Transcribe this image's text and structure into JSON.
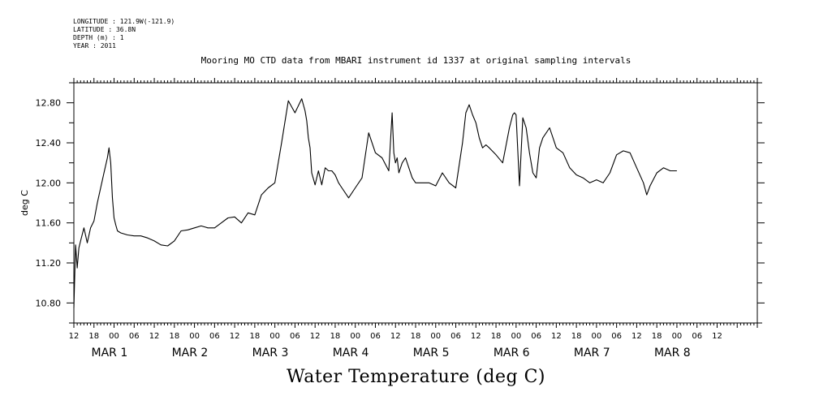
{
  "meta": {
    "longitude": "LONGITUDE : 121.9W(-121.9)",
    "latitude": "LATITUDE : 36.8N",
    "depth": "DEPTH (m) : 1",
    "year": "YEAR : 2011"
  },
  "chart_data": {
    "type": "line",
    "title": "Mooring MO CTD data from MBARI instrument id 1337 at original sampling intervals",
    "xlabel": "Water Temperature (deg C)",
    "ylabel": "deg C",
    "ylim": [
      10.6,
      13.0
    ],
    "y_ticks": [
      "10.80",
      "11.20",
      "11.60",
      "12.00",
      "12.40",
      "12.80"
    ],
    "x_range_hours": [
      12,
      216
    ],
    "x_tick_labels": [
      "12",
      "18",
      "00",
      "06",
      "12",
      "18",
      "00",
      "06",
      "12",
      "18",
      "00",
      "06",
      "12",
      "18",
      "00",
      "06",
      "12",
      "18",
      "00",
      "06",
      "12",
      "18",
      "00",
      "06",
      "12",
      "18",
      "00",
      "06",
      "12",
      "18",
      "00",
      "06",
      "12"
    ],
    "day_labels": [
      {
        "text": "MAR  1",
        "hour": 24
      },
      {
        "text": "MAR  2",
        "hour": 48
      },
      {
        "text": "MAR  3",
        "hour": 72
      },
      {
        "text": "MAR  4",
        "hour": 96
      },
      {
        "text": "MAR  5",
        "hour": 120
      },
      {
        "text": "MAR  6",
        "hour": 144
      },
      {
        "text": "MAR  7",
        "hour": 168
      },
      {
        "text": "MAR  8",
        "hour": 192
      }
    ],
    "series": [
      {
        "x_hours": [
          12,
          12.5,
          13,
          13.5,
          14,
          15,
          16,
          17,
          18,
          19,
          20,
          21,
          22,
          22.5,
          23,
          23.5,
          24,
          24.5,
          25,
          26,
          28,
          30,
          32,
          34,
          36,
          38,
          40,
          42,
          44,
          46,
          48,
          50,
          52,
          54,
          56,
          58,
          60,
          62,
          64,
          66,
          68,
          70,
          72,
          74,
          76,
          78,
          80,
          81,
          81.5,
          82,
          82.5,
          83,
          84,
          85,
          86,
          87,
          88,
          89,
          90,
          91,
          92,
          94,
          96,
          98,
          100,
          102,
          104,
          106,
          107,
          107.5,
          108,
          108.5,
          109,
          110,
          111,
          112,
          113,
          114,
          116,
          118,
          120,
          122,
          124,
          126,
          128,
          129,
          130,
          131,
          132,
          133,
          134,
          135,
          136,
          138,
          140,
          142,
          143,
          143.5,
          144,
          145,
          146,
          147,
          148,
          149,
          150,
          151,
          152,
          154,
          156,
          158,
          160,
          162,
          164,
          166,
          168,
          170,
          172,
          174,
          176,
          178,
          180,
          182,
          183,
          184,
          186,
          188,
          190,
          192
        ],
        "values": [
          10.75,
          11.38,
          11.15,
          11.35,
          11.42,
          11.55,
          11.4,
          11.55,
          11.62,
          11.8,
          11.95,
          12.1,
          12.25,
          12.35,
          12.2,
          11.85,
          11.65,
          11.58,
          11.52,
          11.5,
          11.48,
          11.47,
          11.47,
          11.45,
          11.42,
          11.38,
          11.37,
          11.42,
          11.52,
          11.53,
          11.55,
          11.57,
          11.55,
          11.55,
          11.6,
          11.65,
          11.66,
          11.6,
          11.7,
          11.68,
          11.88,
          11.95,
          12.0,
          12.4,
          12.82,
          12.7,
          12.84,
          12.72,
          12.62,
          12.45,
          12.35,
          12.1,
          11.98,
          12.12,
          11.98,
          12.15,
          12.12,
          12.12,
          12.08,
          12.0,
          11.95,
          11.85,
          11.95,
          12.05,
          12.5,
          12.3,
          12.25,
          12.12,
          12.7,
          12.3,
          12.2,
          12.25,
          12.1,
          12.2,
          12.25,
          12.15,
          12.05,
          12.0,
          12.0,
          12.0,
          11.97,
          12.1,
          12.0,
          11.95,
          12.4,
          12.7,
          12.78,
          12.68,
          12.6,
          12.45,
          12.35,
          12.38,
          12.35,
          12.28,
          12.2,
          12.55,
          12.68,
          12.7,
          12.68,
          11.97,
          12.65,
          12.55,
          12.3,
          12.1,
          12.05,
          12.35,
          12.45,
          12.55,
          12.35,
          12.3,
          12.15,
          12.08,
          12.05,
          12.0,
          12.03,
          12.0,
          12.1,
          12.28,
          12.32,
          12.3,
          12.15,
          12.0,
          11.88,
          11.97,
          12.1,
          12.15,
          12.12,
          12.12
        ]
      }
    ],
    "line_color": "#000000",
    "grid": false
  },
  "footer": "Water Temperature (deg C)"
}
